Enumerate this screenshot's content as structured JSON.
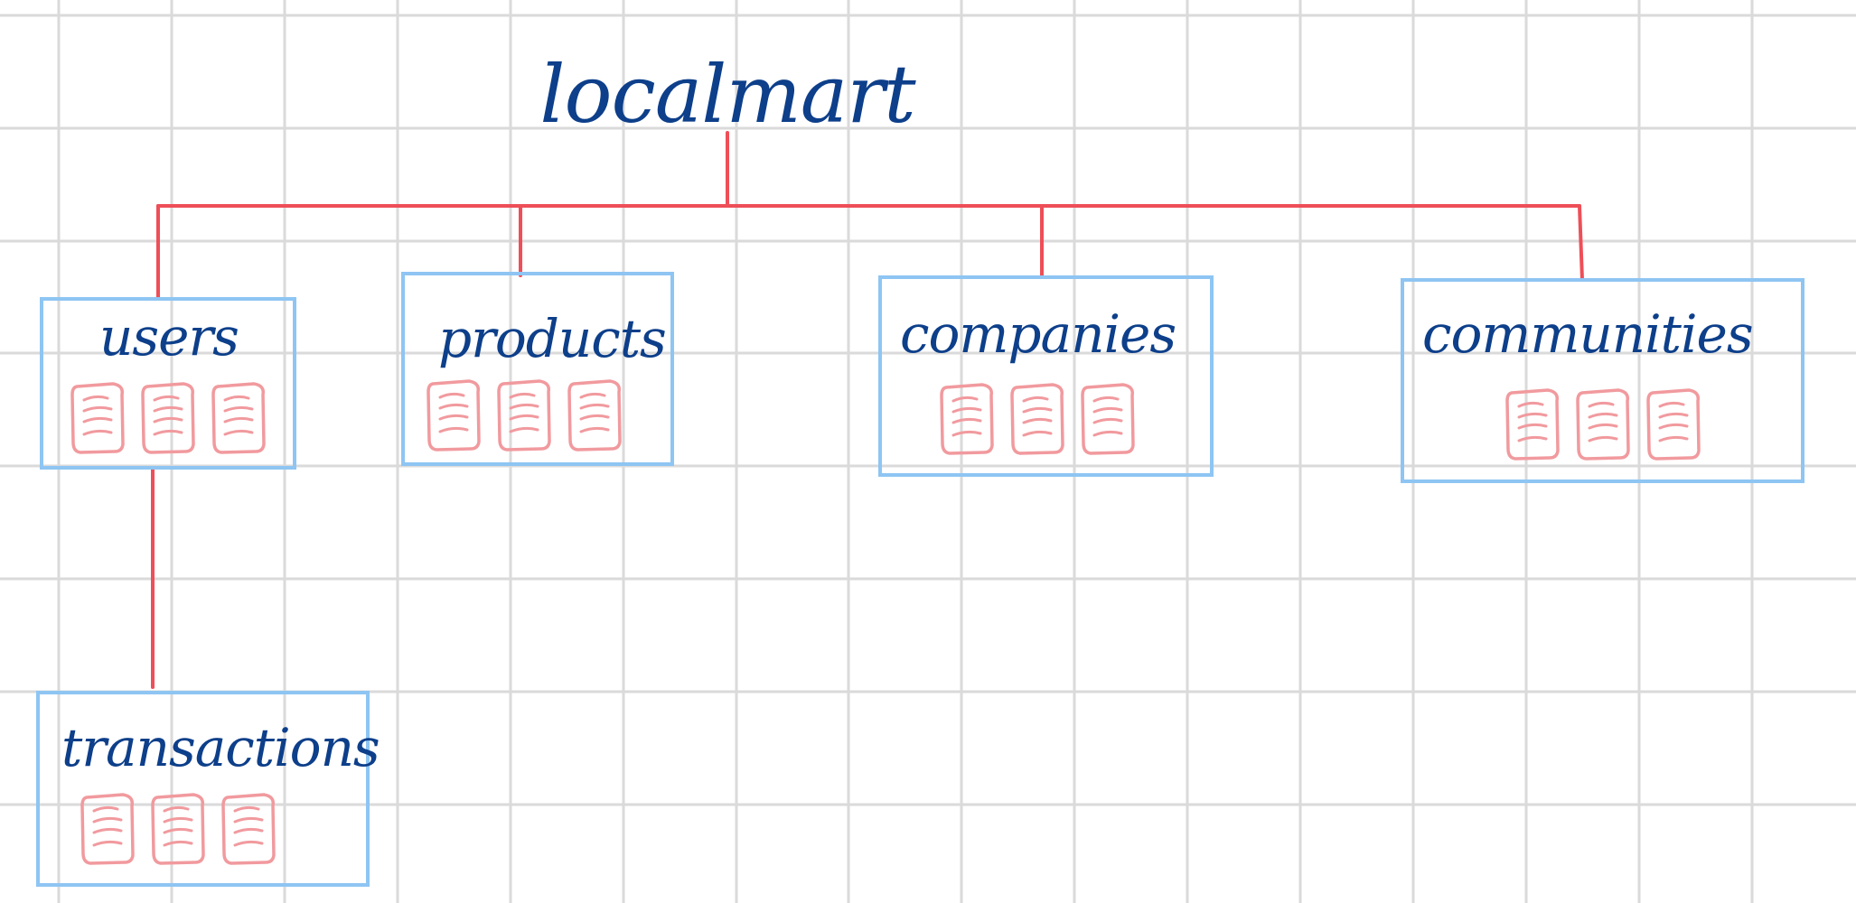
{
  "root": {
    "label": "localmart"
  },
  "nodes": [
    {
      "id": "users",
      "label": "users",
      "documents": 3
    },
    {
      "id": "products",
      "label": "products",
      "documents": 3
    },
    {
      "id": "companies",
      "label": "companies",
      "documents": 3
    },
    {
      "id": "communities",
      "label": "communities",
      "documents": 3
    },
    {
      "id": "transactions",
      "label": "transactions",
      "documents": 3,
      "parent": "users"
    }
  ],
  "colors": {
    "background": "#ffffff",
    "grid": "#dadada",
    "text": "#0d3f8a",
    "connector": "#ee4f58",
    "box": "#8ec5f3",
    "document": "#f19a9e"
  },
  "icons": {
    "document": "document-icon"
  }
}
